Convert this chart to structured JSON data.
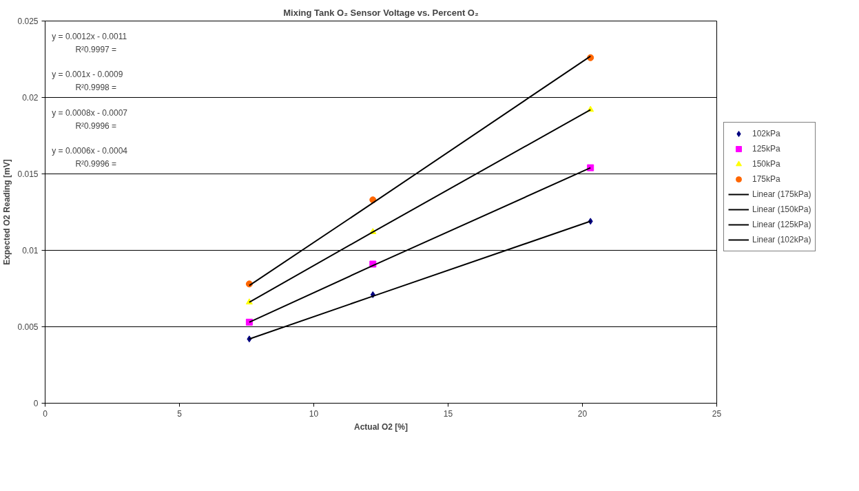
{
  "chart_data": {
    "type": "scatter",
    "title": "Mixing Tank O₂ Sensor Voltage vs. Percent O₂",
    "xlabel": "Actual O2 [%]",
    "ylabel": "Expected O2 Reading [mV]",
    "x": [
      7.6,
      12.2,
      20.3
    ],
    "series": [
      {
        "name": "102kPa",
        "color": "#000080",
        "marker": "diamond",
        "values": [
          0.0042,
          0.0071,
          0.0119
        ]
      },
      {
        "name": "125kPa",
        "color": "#ff00ff",
        "marker": "square",
        "values": [
          0.0053,
          0.0091,
          0.0154
        ]
      },
      {
        "name": "150kPa",
        "color": "#ffff00",
        "marker": "triangle",
        "values": [
          0.0066,
          0.0112,
          0.0192
        ]
      },
      {
        "name": "175kPa",
        "color": "#ff6600",
        "marker": "circle",
        "values": [
          0.0078,
          0.0133,
          0.0226
        ]
      },
      {
        "name": "Linear (175kPa)",
        "type": "line",
        "color": "#000000",
        "values": [
          0.0077,
          0.0131,
          0.0227
        ]
      },
      {
        "name": "Linear (150kPa)",
        "type": "line",
        "color": "#000000",
        "values": [
          0.0066,
          0.0112,
          0.0192
        ]
      },
      {
        "name": "Linear (125kPa)",
        "type": "line",
        "color": "#000000",
        "values": [
          0.0053,
          0.009,
          0.0154
        ]
      },
      {
        "name": "Linear (102kPa)",
        "type": "line",
        "color": "#000000",
        "values": [
          0.0042,
          0.007,
          0.0119
        ]
      }
    ],
    "annotations": [
      "y = 0.0012x - 0.0011",
      "R²0.9997 =",
      "y = 0.001x - 0.0009",
      "R²0.9998 =",
      "y = 0.0008x - 0.0007",
      "R²0.9996 =",
      "y = 0.0006x - 0.0004",
      "R²0.9996 ="
    ],
    "xlim": [
      0,
      25
    ],
    "xticks": [
      0,
      5,
      10,
      15,
      20,
      25
    ],
    "ylim": [
      0,
      0.025
    ],
    "yticks": [
      0,
      0.005,
      0.01,
      0.015,
      0.02,
      0.025
    ],
    "grid": "y",
    "legend": "right"
  }
}
